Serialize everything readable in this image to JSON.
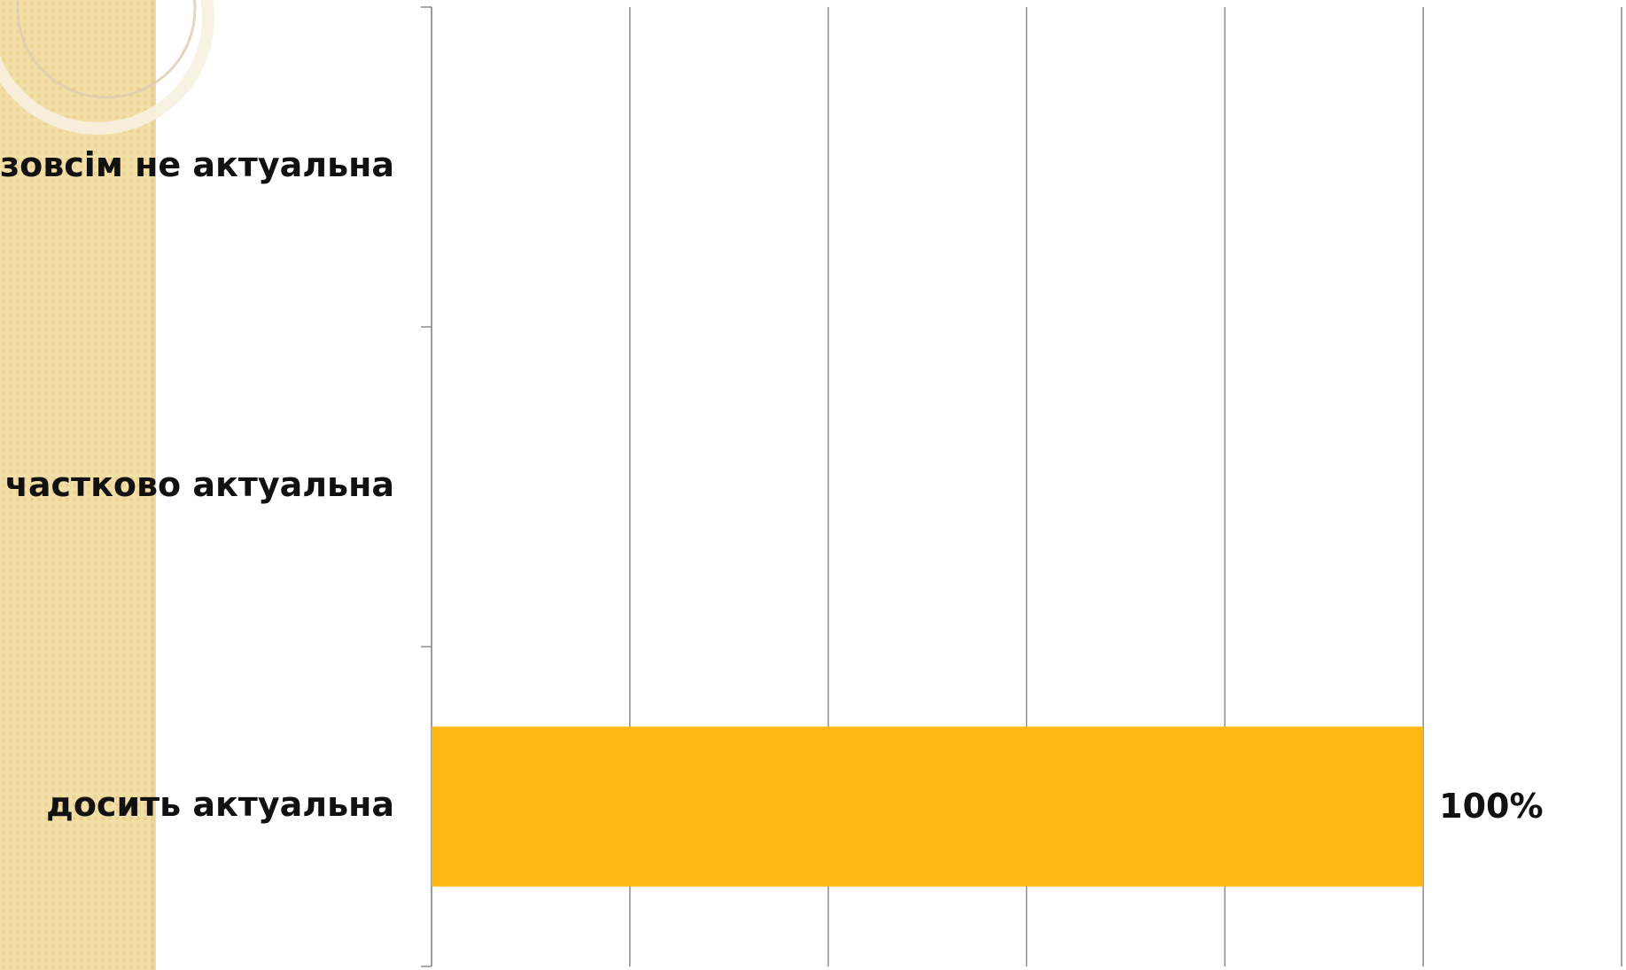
{
  "chart_data": {
    "type": "bar",
    "orientation": "horizontal",
    "categories": [
      "досить актуальна",
      "частково актуальна",
      "зовсім не актуальна"
    ],
    "values": [
      100,
      0,
      0
    ],
    "value_labels": [
      "100%",
      null,
      null
    ],
    "color": "#fdb813",
    "xlim": [
      0,
      120
    ],
    "xticks": [
      0,
      20,
      40,
      60,
      80,
      100,
      120
    ],
    "show_tick_labels": false,
    "grid": true
  }
}
